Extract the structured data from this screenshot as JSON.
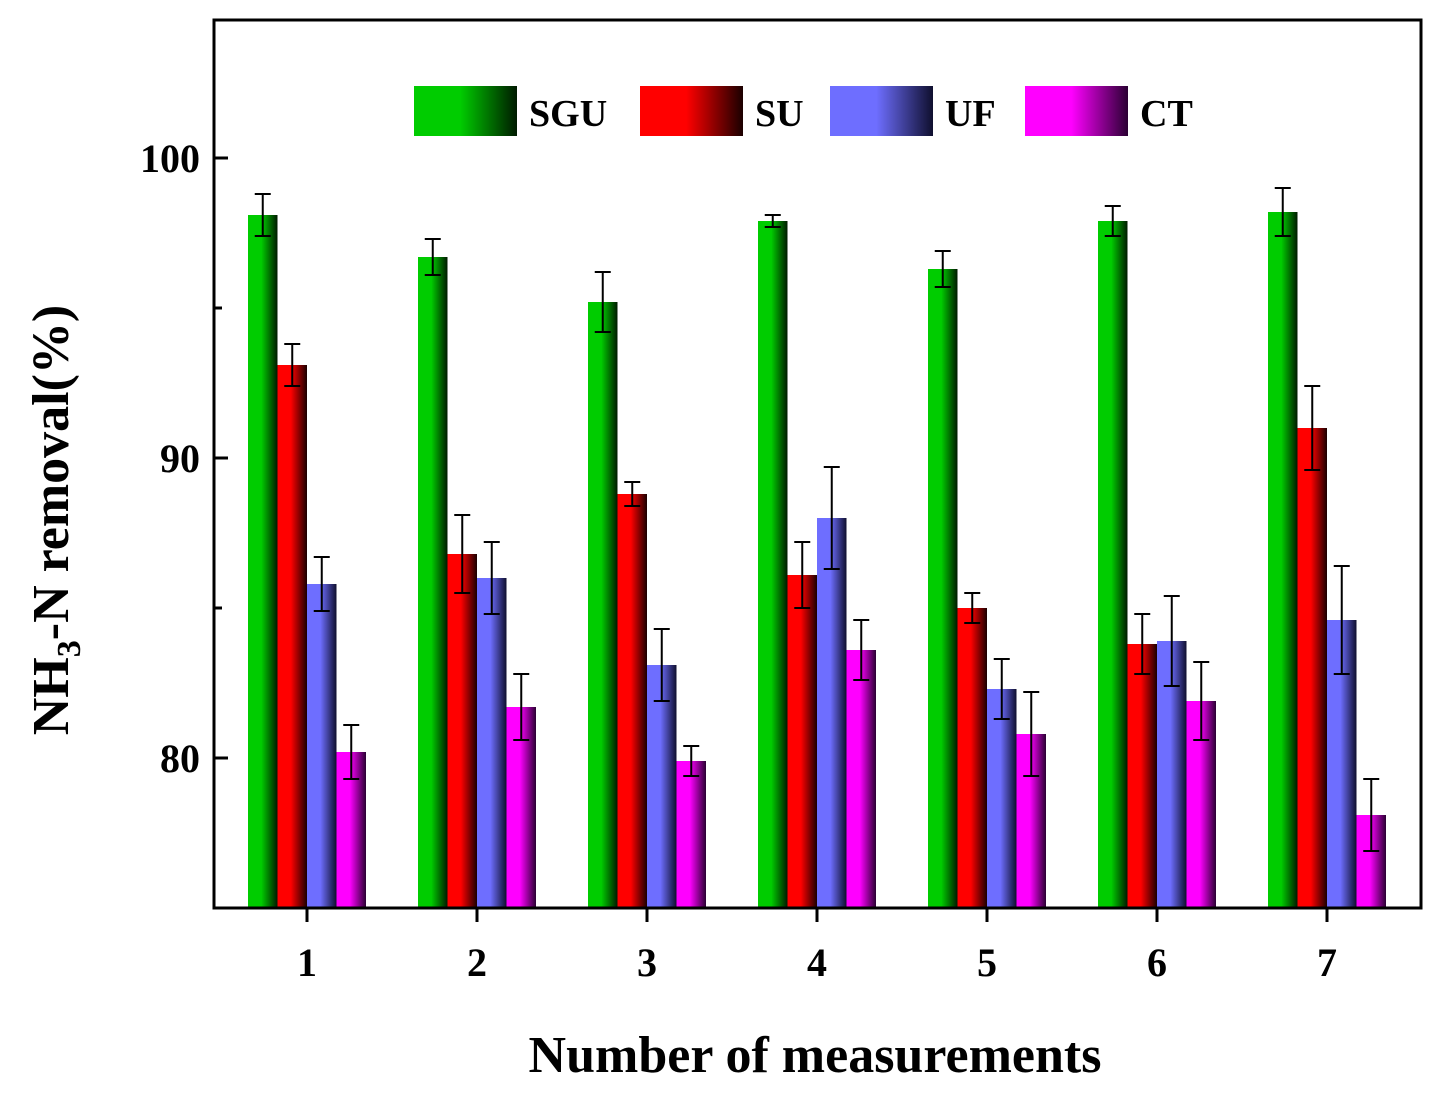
{
  "chart_data": {
    "type": "bar",
    "xlabel": "Number of measurements",
    "ylabel": {
      "main": "NH",
      "subscript": "3",
      "rest": "-N removal(%)"
    },
    "ylim": [
      75,
      104.6
    ],
    "yticks": [
      80,
      90,
      100
    ],
    "categories": [
      "1",
      "2",
      "3",
      "4",
      "5",
      "6",
      "7"
    ],
    "series": [
      {
        "name": "SGU",
        "color_light": "#00cc00",
        "color_dark": "#001a00",
        "values": [
          98.1,
          96.7,
          95.2,
          97.9,
          96.3,
          97.9,
          98.2
        ],
        "errors": [
          0.7,
          0.6,
          1.0,
          0.2,
          0.6,
          0.5,
          0.8
        ]
      },
      {
        "name": "SU",
        "color_light": "#ff0000",
        "color_dark": "#1a0000",
        "values": [
          93.1,
          86.8,
          88.8,
          86.1,
          85.0,
          83.8,
          91.0
        ],
        "errors": [
          0.7,
          1.3,
          0.4,
          1.1,
          0.5,
          1.0,
          1.4
        ]
      },
      {
        "name": "UF",
        "color_light": "#6e6eff",
        "color_dark": "#0f0f2e",
        "values": [
          85.8,
          86.0,
          83.1,
          88.0,
          82.3,
          83.9,
          84.6
        ],
        "errors": [
          0.9,
          1.2,
          1.2,
          1.7,
          1.0,
          1.5,
          1.8
        ]
      },
      {
        "name": "CT",
        "color_light": "#ff00ff",
        "color_dark": "#2a0033",
        "values": [
          80.2,
          81.7,
          79.9,
          83.6,
          80.8,
          81.9,
          78.1
        ],
        "errors": [
          0.9,
          1.1,
          0.5,
          1.0,
          1.4,
          1.3,
          1.2
        ]
      }
    ],
    "legend_position": "top",
    "grid": false
  }
}
